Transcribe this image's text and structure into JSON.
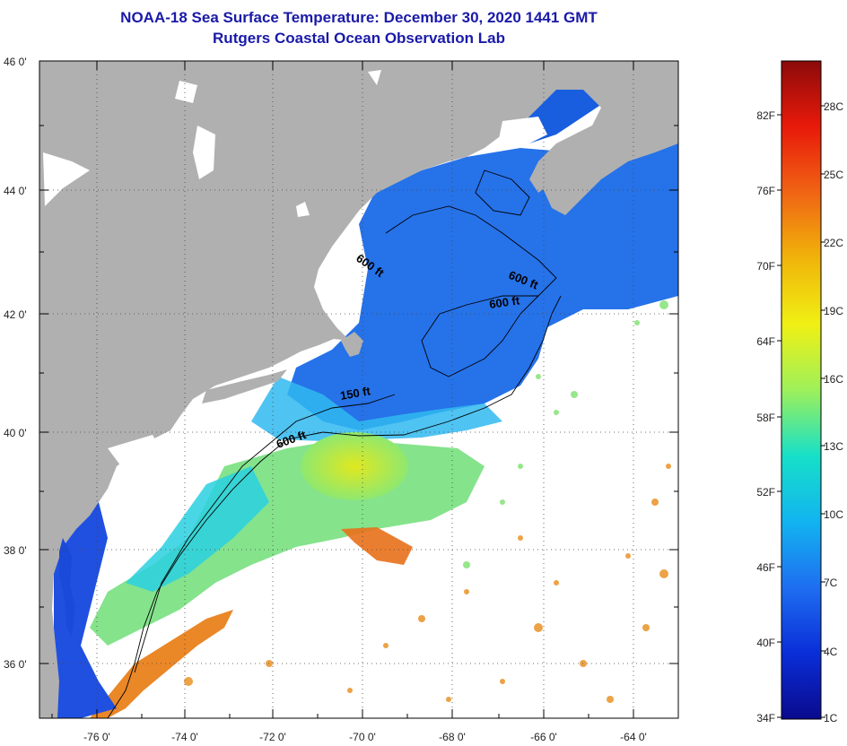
{
  "title_line1": "NOAA-18 Sea Surface Temperature:  December 30, 2020 1441 GMT",
  "title_line2": "Rutgers Coastal Ocean Observation Lab",
  "latitude_labels": [
    "46 0'",
    "44 0'",
    "42 0'",
    "40 0'",
    "38 0'",
    "36 0'"
  ],
  "longitude_labels": [
    "-76 0'",
    "-74 0'",
    "-72 0'",
    "-70 0'",
    "-68 0'",
    "-66 0'",
    "-64 0'"
  ],
  "contour_labels": [
    "600 ft",
    "600 ft",
    "600 ft",
    "150 ft",
    "600 ft"
  ],
  "colorbar": {
    "fahrenheit_labels": [
      "82F",
      "76F",
      "70F",
      "64F",
      "58F",
      "52F",
      "46F",
      "40F",
      "34F"
    ],
    "celsius_labels": [
      "28C",
      "25C",
      "22C",
      "19C",
      "16C",
      "13C",
      "10C",
      "7C",
      "4C",
      "1C"
    ],
    "colors": [
      "#0a0a8c",
      "#0a2ed8",
      "#1e6ef0",
      "#12b4f0",
      "#16e0c8",
      "#9ef05a",
      "#f0f014",
      "#f0b40a",
      "#f06414",
      "#e81a0a",
      "#8c0a0a"
    ]
  },
  "colors": {
    "land": "#b0b0b0",
    "cloud": "#ffffff",
    "title": "#1a1aa8"
  }
}
